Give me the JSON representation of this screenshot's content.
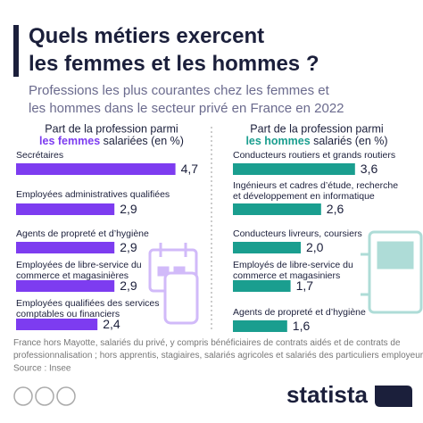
{
  "title": "Quels métiers exercent\nles femmes et les hommes ?",
  "subtitle": "Professions les plus courantes chez les femmes et\nles hommes dans le secteur privé en France en 2022",
  "note": "France hors Mayotte, salariés du privé, y compris bénéficiaires de contrats aidés et de contrats de\nprofessionnalisation ; hors apprentis, stagiaires, salariés agricoles et salariés des particuliers employeurs.",
  "source": "Source : Insee",
  "brand": "statista",
  "chart_data": [
    {
      "type": "bar",
      "orientation": "horizontal",
      "header": "Part de la profession parmi",
      "header_highlight": "les femmes",
      "header_suffix": "salariées (en %)",
      "color": "#7d3cf0",
      "categories": [
        "Secrétaires",
        "Employées administratives qualifiées",
        "Agents de propreté et d’hygiène",
        "Employées de libre-service du\ncommerce et magasinières",
        "Employées qualifiées des services\ncomptables ou financiers"
      ],
      "values": [
        4.7,
        2.9,
        2.9,
        2.9,
        2.4
      ],
      "value_labels": [
        "4,7",
        "2,9",
        "2,9",
        "2,9",
        "2,4"
      ]
    },
    {
      "type": "bar",
      "orientation": "horizontal",
      "header": "Part de la profession parmi",
      "header_highlight": "les hommes",
      "header_suffix": "salariés (en %)",
      "color": "#1a9e8f",
      "categories": [
        "Conducteurs routiers et grands routiers",
        "Ingénieurs et cadres d’étude, recherche\net développement en informatique",
        "Conducteurs livreurs, coursiers",
        "Employés de libre-service du\ncommerce et magasiniers",
        "Agents de propreté et d’hygiène"
      ],
      "values": [
        3.6,
        2.6,
        2.0,
        1.7,
        1.6
      ],
      "value_labels": [
        "3,6",
        "2,6",
        "2,0",
        "1,7",
        "1,6"
      ]
    }
  ]
}
